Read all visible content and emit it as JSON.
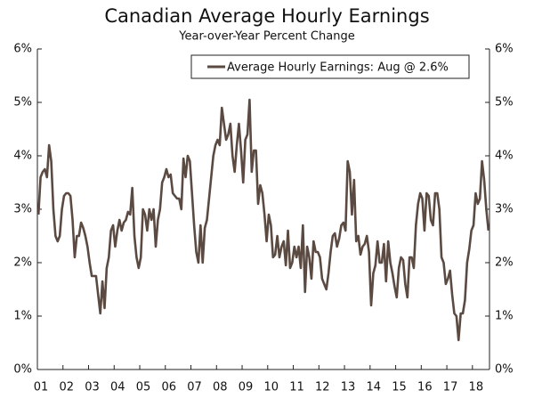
{
  "chart_data": {
    "type": "line",
    "title": "Canadian Average Hourly Earnings",
    "subtitle": "Year-over-Year Percent Change",
    "categories": [
      "01",
      null,
      null,
      null,
      null,
      null,
      null,
      null,
      null,
      null,
      null,
      null,
      "02",
      null,
      null,
      null,
      null,
      null,
      null,
      null,
      null,
      null,
      null,
      null,
      "03",
      null,
      null,
      null,
      null,
      null,
      null,
      null,
      null,
      null,
      null,
      null,
      "04",
      null,
      null,
      null,
      null,
      null,
      null,
      null,
      null,
      null,
      null,
      null,
      "05",
      null,
      null,
      null,
      null,
      null,
      null,
      null,
      null,
      null,
      null,
      null,
      "06",
      null,
      null,
      null,
      null,
      null,
      null,
      null,
      null,
      null,
      null,
      null,
      "07",
      null,
      null,
      null,
      null,
      null,
      null,
      null,
      null,
      null,
      null,
      null,
      "08",
      null,
      null,
      null,
      null,
      null,
      null,
      null,
      null,
      null,
      null,
      null,
      "09",
      null,
      null,
      null,
      null,
      null,
      null,
      null,
      null,
      null,
      null,
      null,
      "10",
      null,
      null,
      null,
      null,
      null,
      null,
      null,
      null,
      null,
      null,
      null,
      "11",
      null,
      null,
      null,
      null,
      null,
      null,
      null,
      null,
      null,
      null,
      null,
      "12",
      null,
      null,
      null,
      null,
      null,
      null,
      null,
      null,
      null,
      null,
      null,
      "13",
      null,
      null,
      null,
      null,
      null,
      null,
      null,
      null,
      null,
      null,
      null,
      "14",
      null,
      null,
      null,
      null,
      null,
      null,
      null,
      null,
      null,
      null,
      null,
      "15",
      null,
      null,
      null,
      null,
      null,
      null,
      null,
      null,
      null,
      null,
      null,
      "16",
      null,
      null,
      null,
      null,
      null,
      null,
      null,
      null,
      null,
      null,
      null,
      "17",
      null,
      null,
      null,
      null,
      null,
      null,
      null,
      null,
      null,
      null,
      null,
      "18",
      null,
      null,
      null,
      null,
      null,
      null,
      null
    ],
    "series": [
      {
        "name": "Average Hourly Earnings: Aug @ 2.6%",
        "color": "#5b4a42",
        "values": [
          2.9,
          3.6,
          3.7,
          3.75,
          3.6,
          4.2,
          3.9,
          3.0,
          2.5,
          2.4,
          2.5,
          3.0,
          3.25,
          3.3,
          3.3,
          3.25,
          2.8,
          2.1,
          2.5,
          2.5,
          2.75,
          2.65,
          2.5,
          2.3,
          2.0,
          1.75,
          1.75,
          1.75,
          1.4,
          1.05,
          1.65,
          1.15,
          1.9,
          2.1,
          2.6,
          2.7,
          2.3,
          2.6,
          2.8,
          2.6,
          2.75,
          2.8,
          2.95,
          2.9,
          3.4,
          2.5,
          2.1,
          1.9,
          2.1,
          3.0,
          2.9,
          2.6,
          3.0,
          2.8,
          3.0,
          2.3,
          2.8,
          3.0,
          3.5,
          3.6,
          3.75,
          3.6,
          3.65,
          3.3,
          3.25,
          3.2,
          3.2,
          3.0,
          3.95,
          3.6,
          4.0,
          3.9,
          3.3,
          2.7,
          2.2,
          2.0,
          2.7,
          2.0,
          2.65,
          2.8,
          3.2,
          3.6,
          4.0,
          4.2,
          4.3,
          4.2,
          4.9,
          4.6,
          4.3,
          4.4,
          4.6,
          4.0,
          3.7,
          4.2,
          4.6,
          4.1,
          3.5,
          4.3,
          4.4,
          5.05,
          3.7,
          4.1,
          4.1,
          3.1,
          3.45,
          3.3,
          2.9,
          2.4,
          2.9,
          2.7,
          2.1,
          2.15,
          2.5,
          2.1,
          2.3,
          2.4,
          1.95,
          2.6,
          1.9,
          2.0,
          2.3,
          2.1,
          2.3,
          1.9,
          2.7,
          1.45,
          2.3,
          2.1,
          1.7,
          2.4,
          2.2,
          2.2,
          2.1,
          1.7,
          1.6,
          1.5,
          1.8,
          2.2,
          2.5,
          2.55,
          2.3,
          2.45,
          2.7,
          2.75,
          2.6,
          3.9,
          3.7,
          2.9,
          3.55,
          2.4,
          2.5,
          2.15,
          2.3,
          2.35,
          2.5,
          2.2,
          1.2,
          1.8,
          1.95,
          2.4,
          2.0,
          2.0,
          2.35,
          1.65,
          2.4,
          2.0,
          1.8,
          1.55,
          1.35,
          1.9,
          2.1,
          2.05,
          1.6,
          1.35,
          2.1,
          2.1,
          1.9,
          2.7,
          3.1,
          3.3,
          3.2,
          2.6,
          3.3,
          3.25,
          2.8,
          2.7,
          3.3,
          3.3,
          3.0,
          2.1,
          2.0,
          1.6,
          1.7,
          1.85,
          1.4,
          1.05,
          1.0,
          0.55,
          1.05,
          1.05,
          1.3,
          2.0,
          2.25,
          2.6,
          2.7,
          3.3,
          3.1,
          3.2,
          3.9,
          3.55,
          3.0,
          2.6
        ]
      }
    ],
    "ylim": [
      0,
      6
    ],
    "yticks": [
      {
        "value": 0,
        "label": "0%"
      },
      {
        "value": 1,
        "label": "1%"
      },
      {
        "value": 2,
        "label": "2%"
      },
      {
        "value": 3,
        "label": "3%"
      },
      {
        "value": 4,
        "label": "4%"
      },
      {
        "value": 5,
        "label": "5%"
      },
      {
        "value": 6,
        "label": "6%"
      }
    ],
    "y2lim": [
      0,
      6
    ],
    "y2ticks": [
      {
        "value": 0,
        "label": "0%"
      },
      {
        "value": 1,
        "label": "1%"
      },
      {
        "value": 2,
        "label": "2%"
      },
      {
        "value": 3,
        "label": "3%"
      },
      {
        "value": 4,
        "label": "4%"
      },
      {
        "value": 5,
        "label": "5%"
      },
      {
        "value": 6,
        "label": "6%"
      }
    ],
    "grid": false,
    "legend": "upper right"
  }
}
